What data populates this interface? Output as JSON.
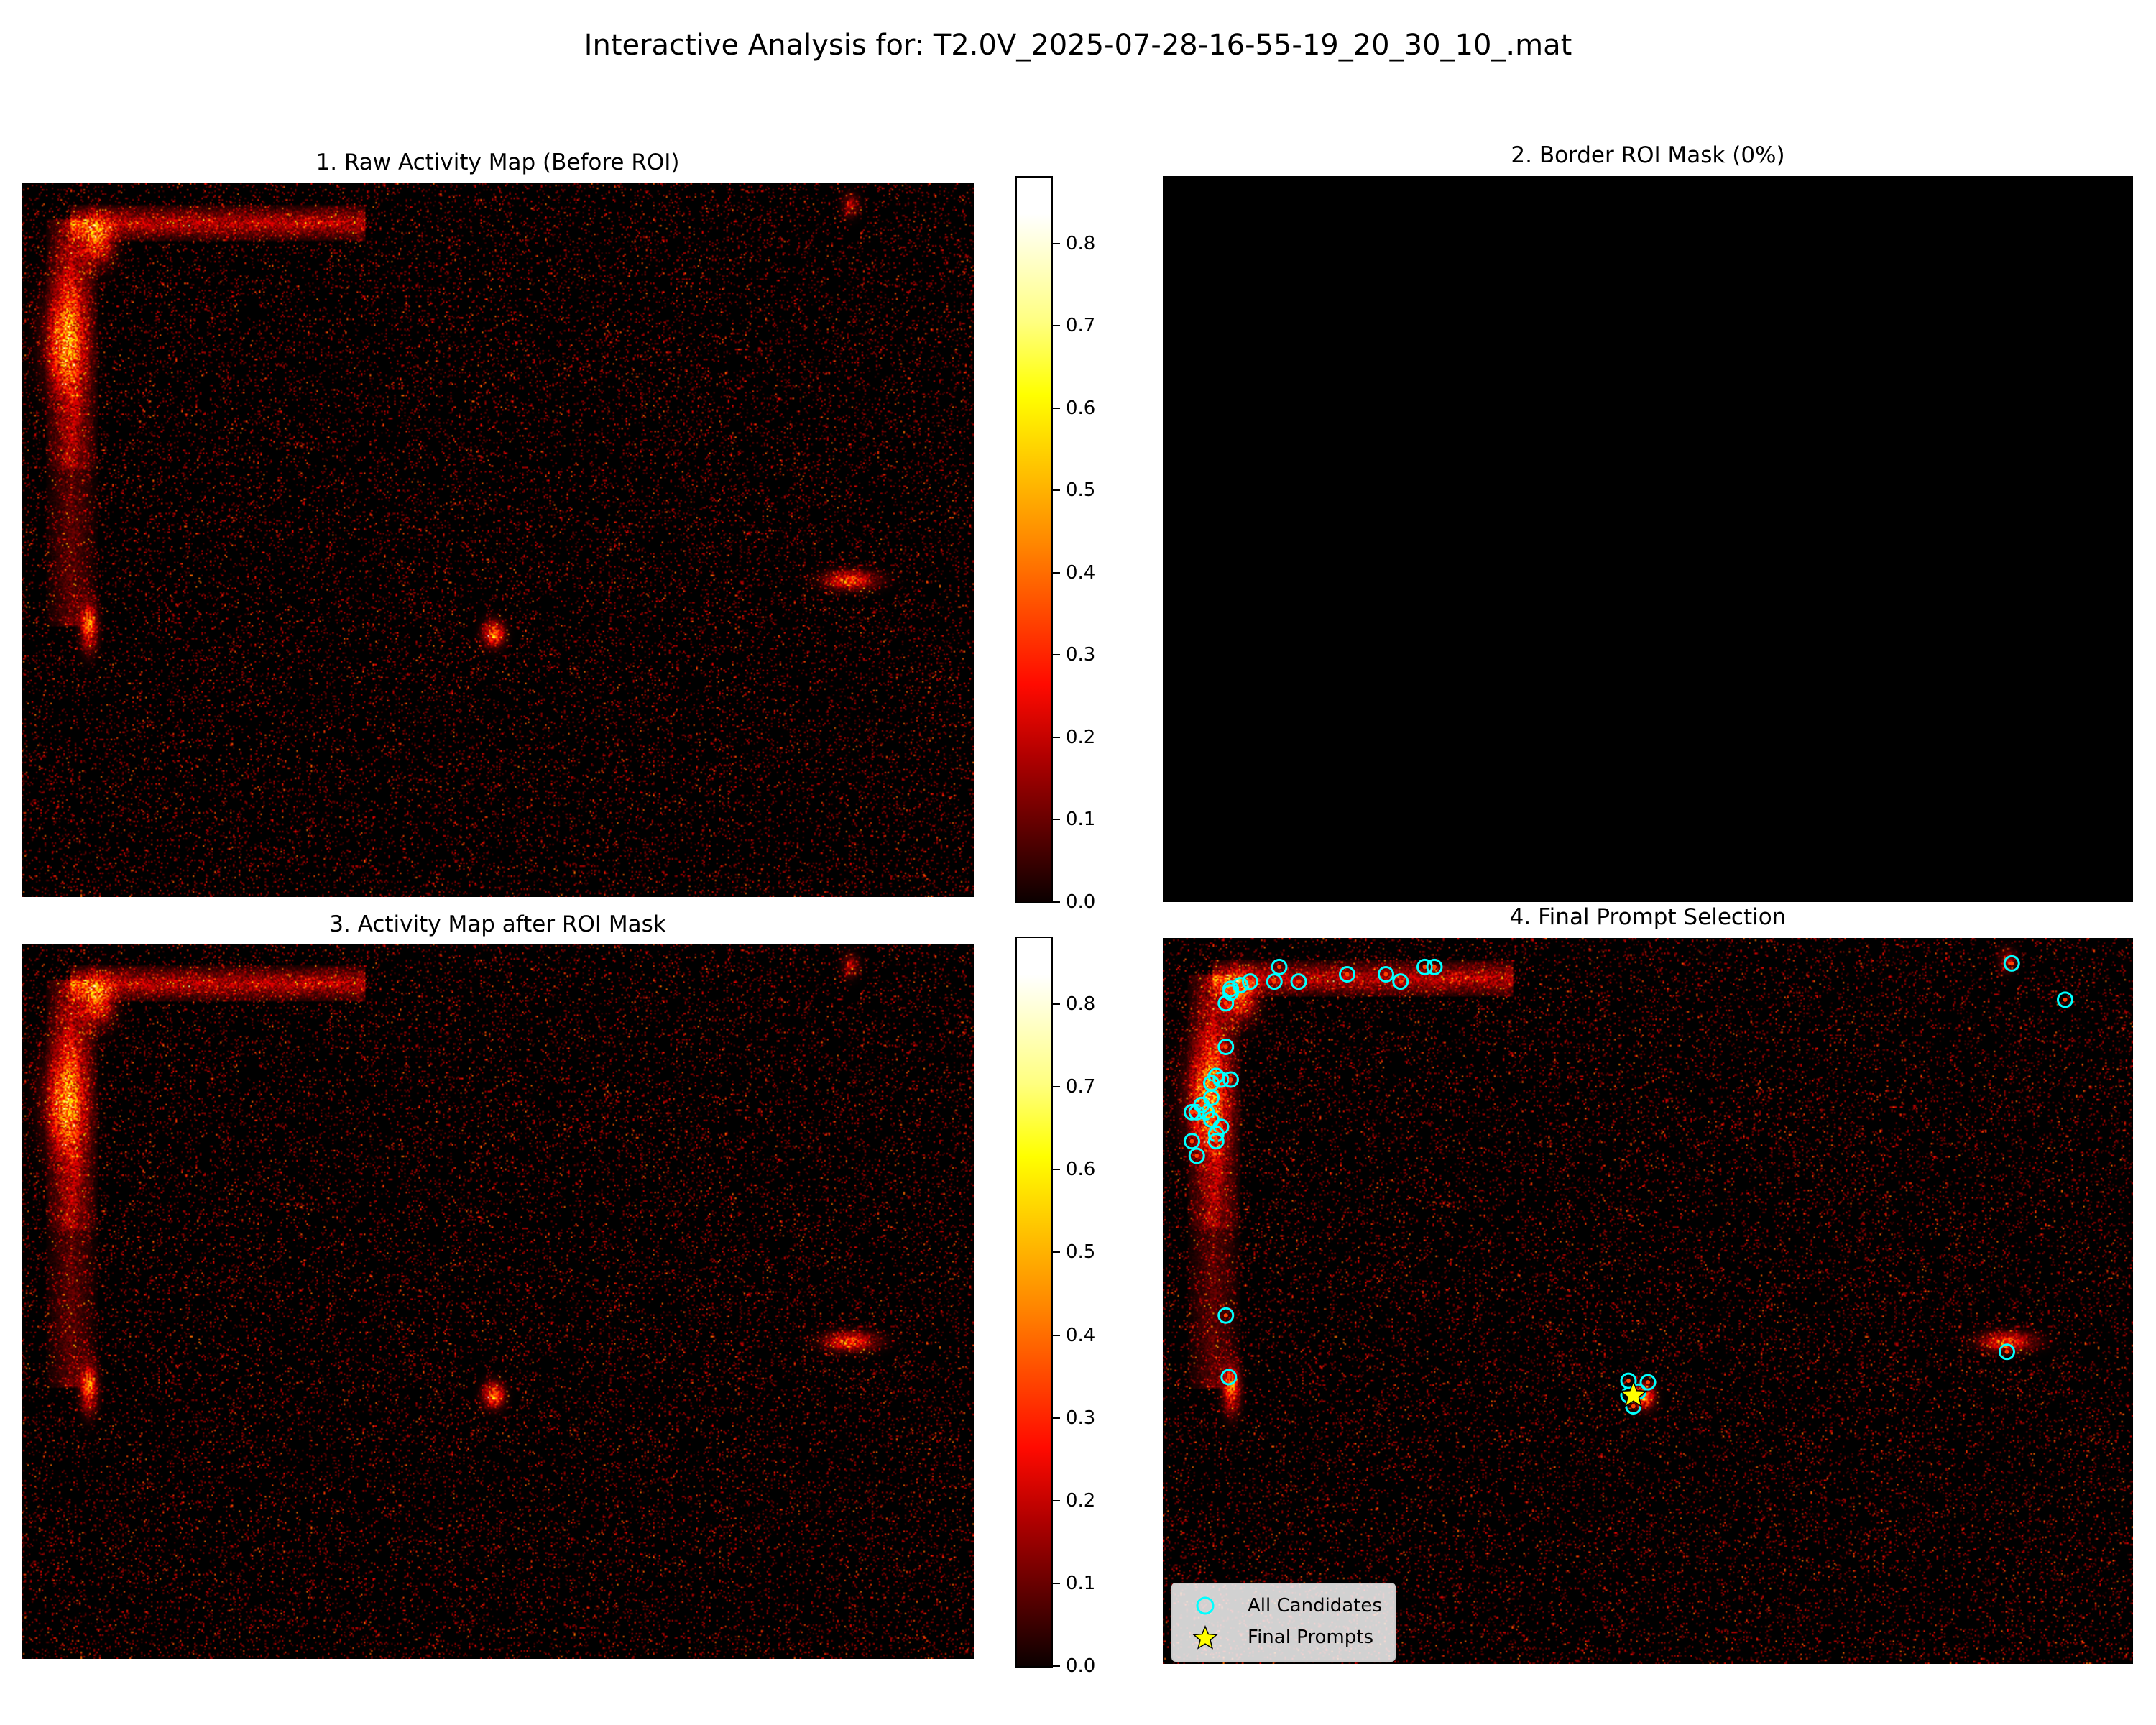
{
  "suptitle": "Interactive Analysis for: T2.0V_2025-07-28-16-55-19_20_30_10_.mat",
  "colors": {
    "background": "#000000",
    "candidate_marker": "#00ffff",
    "final_prompt_marker": "#ffff00",
    "colormap": "hot"
  },
  "panels": {
    "raw": {
      "title": "1. Raw Activity Map (Before ROI)"
    },
    "mask": {
      "title": "2. Border ROI Mask (0%)"
    },
    "after": {
      "title": "3. Activity Map after ROI Mask"
    },
    "final": {
      "title": "4. Final Prompt Selection"
    }
  },
  "legend": {
    "candidates_label": "All Candidates",
    "final_label": "Final Prompts",
    "candidate_icon": "circle-icon",
    "final_icon": "star-icon"
  },
  "chart_data": [
    {
      "type": "heatmap",
      "title": "1. Raw Activity Map (Before ROI)",
      "colormap": "hot",
      "colorbar": {
        "ticks": [
          "0.0",
          "0.1",
          "0.2",
          "0.3",
          "0.4",
          "0.5",
          "0.6",
          "0.7",
          "0.8"
        ],
        "range": [
          0,
          0.88
        ]
      },
      "axes": "off"
    },
    {
      "type": "heatmap",
      "title": "2. Border ROI Mask (0%)",
      "colormap": "gray",
      "axes": "off"
    },
    {
      "type": "heatmap",
      "title": "3. Activity Map after ROI Mask",
      "colormap": "hot",
      "colorbar": {
        "ticks": [
          "0.0",
          "0.1",
          "0.2",
          "0.3",
          "0.4",
          "0.5",
          "0.6",
          "0.7",
          "0.8"
        ],
        "range": [
          0,
          0.88
        ]
      },
      "axes": "off"
    },
    {
      "type": "scatter",
      "title": "4. Final Prompt Selection",
      "background": "activity map (hot)",
      "axes": "off",
      "legend_position": "lower left",
      "series": [
        {
          "name": "All Candidates",
          "marker": "circle",
          "points": [
            [
              0.07,
              0.07
            ],
            [
              0.08,
              0.065
            ],
            [
              0.09,
              0.06
            ],
            [
              0.12,
              0.04
            ],
            [
              0.115,
              0.06
            ],
            [
              0.14,
              0.06
            ],
            [
              0.19,
              0.05
            ],
            [
              0.23,
              0.05
            ],
            [
              0.245,
              0.06
            ],
            [
              0.27,
              0.04
            ],
            [
              0.28,
              0.04
            ],
            [
              0.065,
              0.09
            ],
            [
              0.07,
              0.075
            ],
            [
              0.065,
              0.15
            ],
            [
              0.06,
              0.195
            ],
            [
              0.055,
              0.19
            ],
            [
              0.07,
              0.195
            ],
            [
              0.05,
              0.2
            ],
            [
              0.05,
              0.22
            ],
            [
              0.045,
              0.24
            ],
            [
              0.035,
              0.24
            ],
            [
              0.03,
              0.24
            ],
            [
              0.04,
              0.23
            ],
            [
              0.05,
              0.25
            ],
            [
              0.06,
              0.26
            ],
            [
              0.03,
              0.28
            ],
            [
              0.035,
              0.3
            ],
            [
              0.055,
              0.27
            ],
            [
              0.055,
              0.28
            ],
            [
              0.065,
              0.52
            ],
            [
              0.068,
              0.605
            ],
            [
              0.48,
              0.63
            ],
            [
              0.485,
              0.645
            ],
            [
              0.49,
              0.625
            ],
            [
              0.48,
              0.61
            ],
            [
              0.5,
              0.612
            ],
            [
              0.87,
              0.57
            ],
            [
              0.875,
              0.035
            ],
            [
              0.93,
              0.085
            ]
          ]
        },
        {
          "name": "Final Prompts",
          "marker": "star",
          "points": [
            [
              0.485,
              0.63
            ]
          ]
        }
      ]
    }
  ]
}
